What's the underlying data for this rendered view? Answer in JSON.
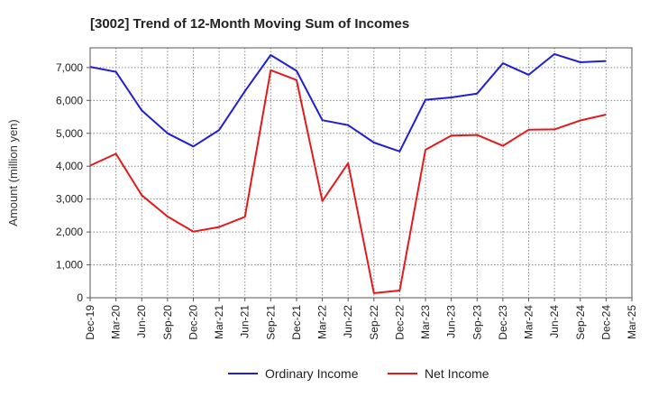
{
  "chart_data": {
    "type": "line",
    "title": "[3002]  Trend of 12-Month Moving Sum of Incomes",
    "xlabel": "",
    "ylabel": "Amount (million yen)",
    "ylim": [
      0,
      7600
    ],
    "yticks": [
      0,
      1000,
      2000,
      3000,
      4000,
      5000,
      6000,
      7000
    ],
    "ytick_labels": [
      "0",
      "1,000",
      "2,000",
      "3,000",
      "4,000",
      "5,000",
      "6,000",
      "7,000"
    ],
    "categories": [
      "Dec-19",
      "Mar-20",
      "Jun-20",
      "Sep-20",
      "Dec-20",
      "Mar-21",
      "Jun-21",
      "Sep-21",
      "Dec-21",
      "Mar-22",
      "Jun-22",
      "Sep-22",
      "Dec-22",
      "Mar-23",
      "Jun-23",
      "Sep-23",
      "Dec-23",
      "Mar-24",
      "Jun-24",
      "Sep-24",
      "Dec-24",
      "Mar-25"
    ],
    "grid": true,
    "legend_position": "bottom-center",
    "series": [
      {
        "name": "Ordinary Income",
        "color": "#1f1fd6",
        "values": [
          7020,
          6870,
          5700,
          5000,
          4600,
          5100,
          6280,
          7380,
          6900,
          5400,
          5250,
          4720,
          4450,
          6020,
          6090,
          6210,
          7130,
          6780,
          7410,
          7160,
          7200,
          null
        ]
      },
      {
        "name": "Net Income",
        "color": "#e31a1c",
        "values": [
          4020,
          4380,
          3120,
          2470,
          2010,
          2150,
          2460,
          6920,
          6620,
          2940,
          4090,
          140,
          220,
          4500,
          4930,
          4950,
          4620,
          5110,
          5120,
          5390,
          5570,
          null
        ]
      }
    ]
  }
}
